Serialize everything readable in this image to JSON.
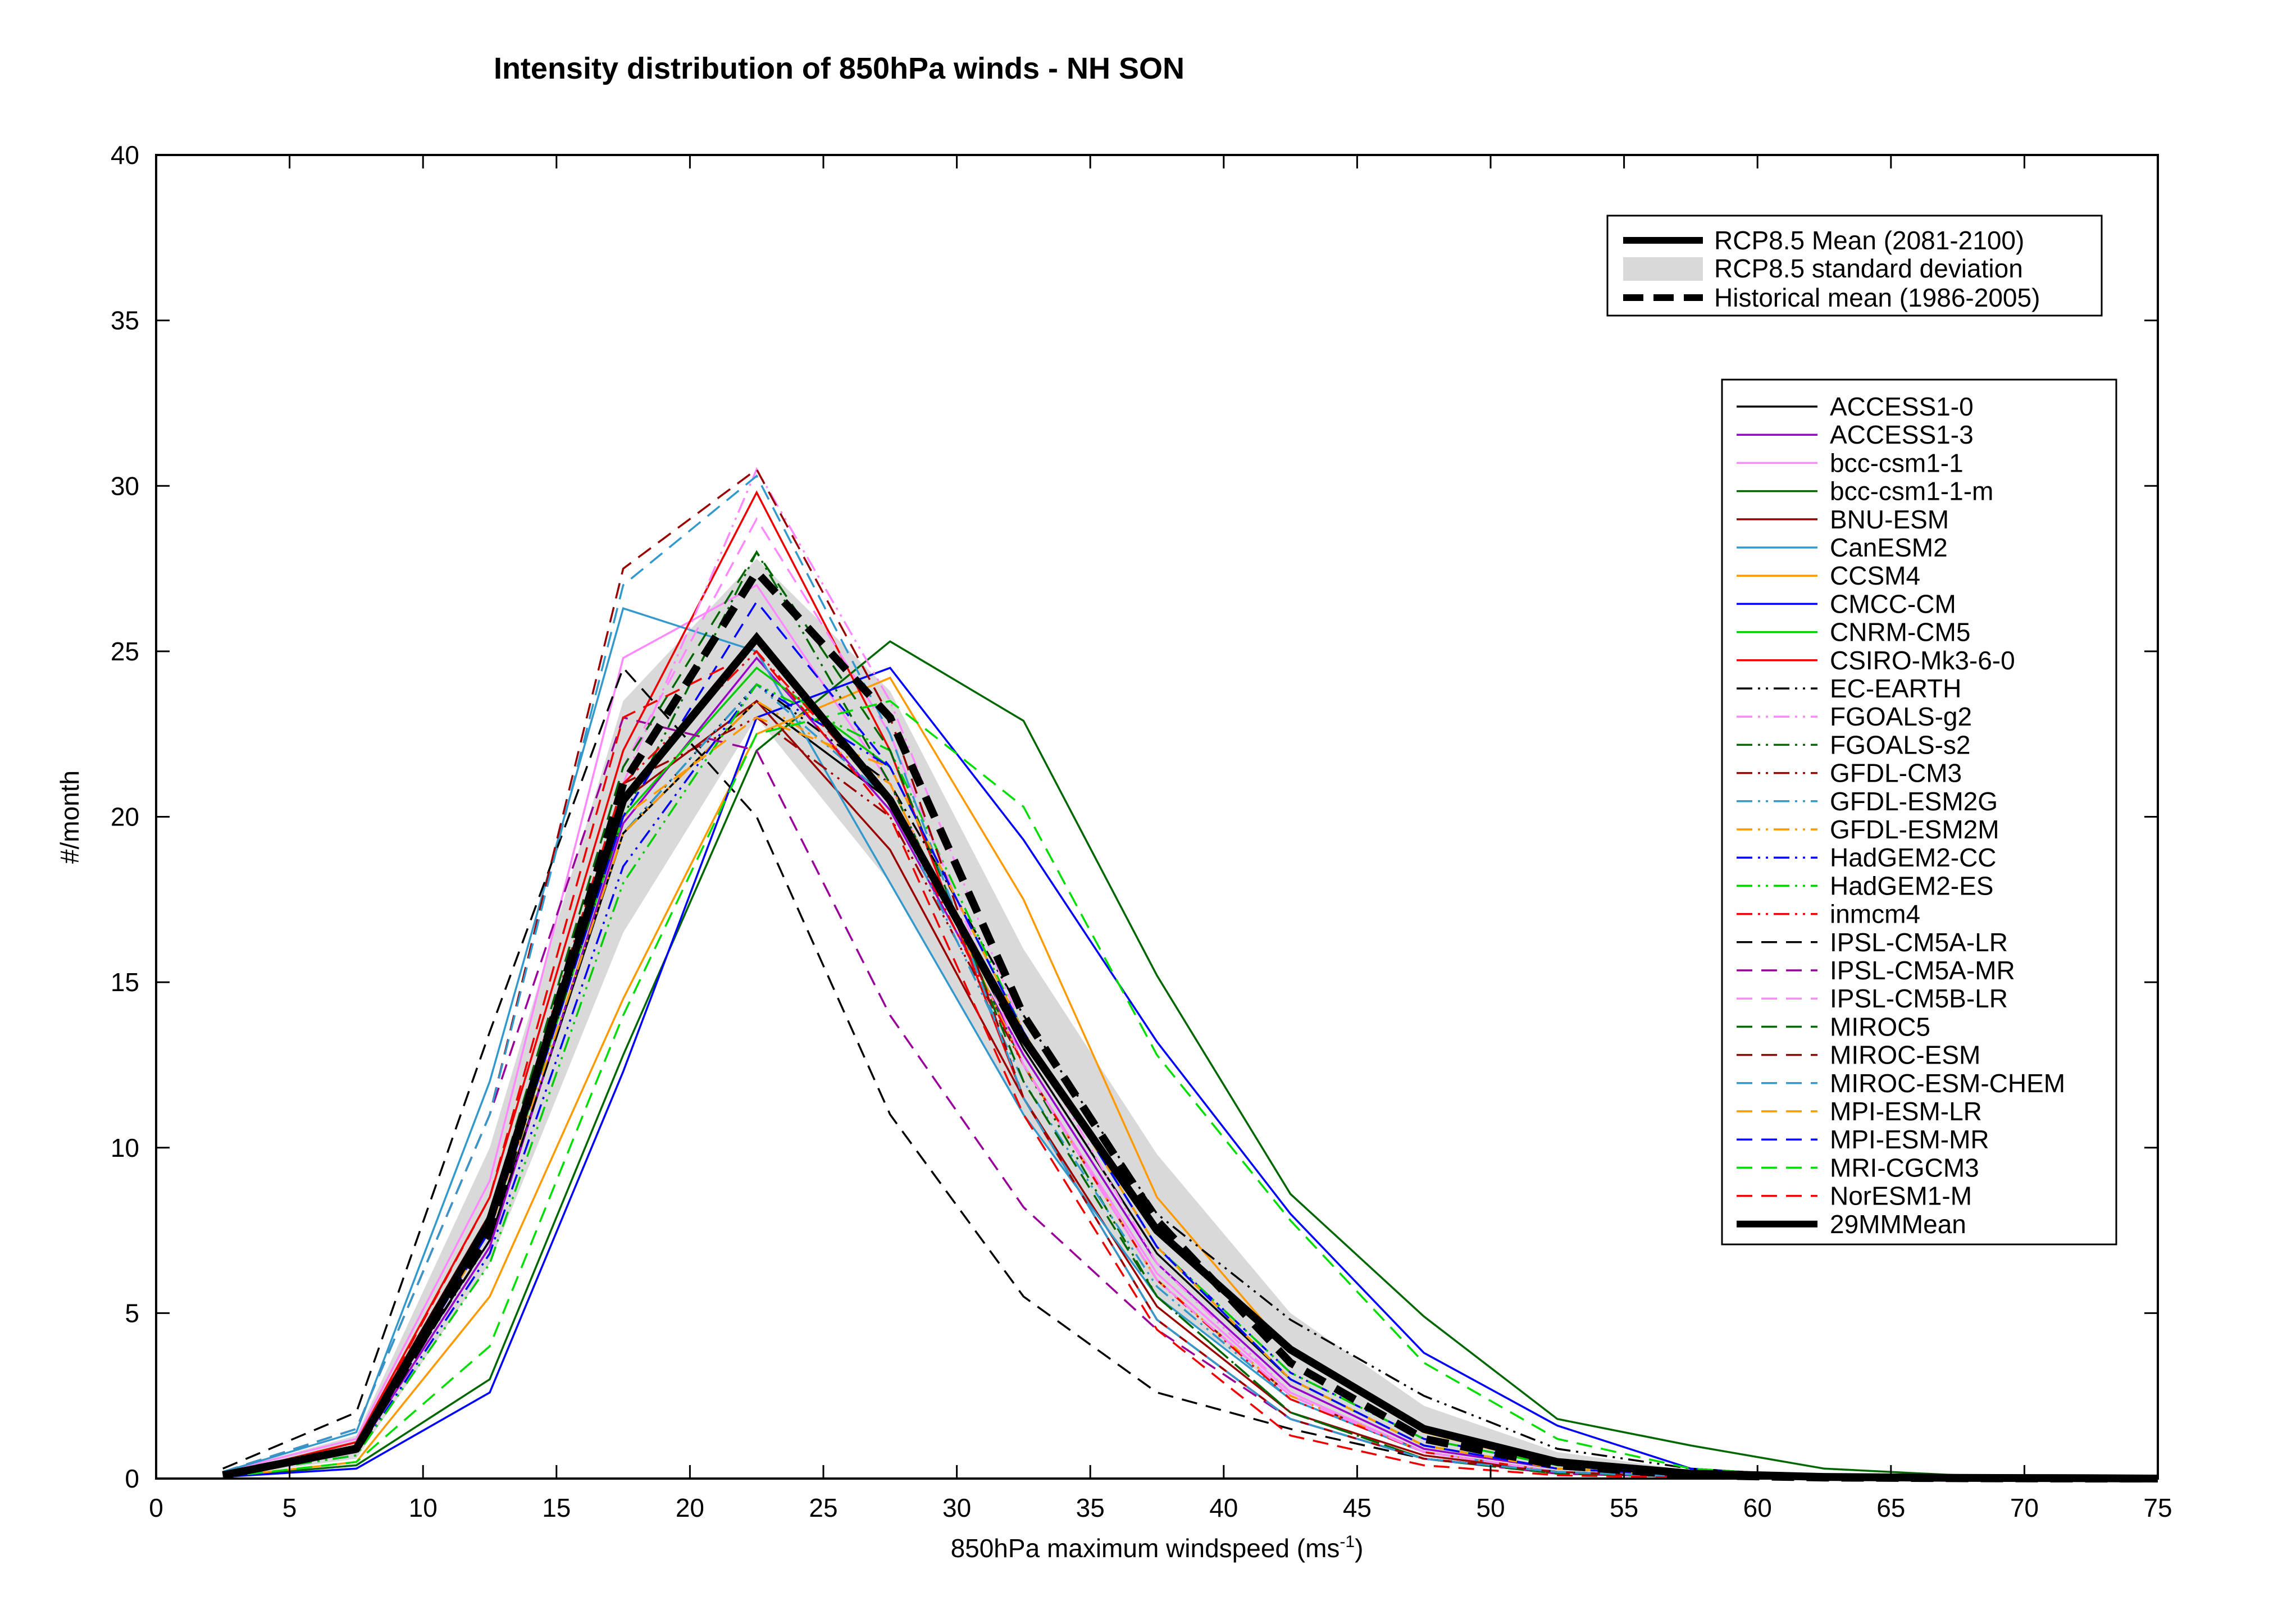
{
  "chart_data": {
    "type": "line",
    "title": "Intensity distribution of 850hPa winds - NH SON",
    "xlabel": "850hPa maximum windspeed (ms",
    "xlabel_sup": "-1",
    "xlabel_end": ")",
    "ylabel": "#/month",
    "xlim": [
      0,
      75
    ],
    "ylim": [
      0,
      40
    ],
    "xticks": [
      0,
      5,
      10,
      15,
      20,
      25,
      30,
      35,
      40,
      45,
      50,
      55,
      60,
      65,
      70,
      75
    ],
    "yticks": [
      0,
      5,
      10,
      15,
      20,
      25,
      30,
      35,
      40
    ],
    "grid": false,
    "x": [
      2.5,
      7.5,
      12.5,
      17.5,
      22.5,
      27.5,
      32.5,
      37.5,
      42.5,
      47.5,
      52.5,
      57.5,
      62.5,
      67.5,
      72.5,
      75
    ],
    "summary": {
      "rcp85_mean": {
        "name": "RCP8.5 Mean (2081-2100)",
        "values": [
          0.1,
          0.9,
          7.8,
          20.5,
          25.4,
          20.5,
          13.3,
          7.5,
          3.9,
          1.5,
          0.5,
          0.15,
          0.05,
          0.02,
          0.01,
          0.0
        ]
      },
      "rcp85_std": {
        "name": "RCP8.5 standard deviation",
        "lower": [
          0.05,
          0.6,
          6.5,
          16.5,
          23.0,
          18.0,
          11.0,
          5.5,
          2.5,
          0.8,
          0.2,
          0.05,
          0.01,
          0.0,
          0.0,
          0.0
        ],
        "upper": [
          0.2,
          1.3,
          10.0,
          23.5,
          27.8,
          23.8,
          16.0,
          9.8,
          5.0,
          2.2,
          0.8,
          0.25,
          0.08,
          0.03,
          0.01,
          0.0
        ]
      },
      "historical_mean": {
        "name": "Historical mean (1986-2005)",
        "values": [
          0.1,
          0.9,
          7.5,
          21.0,
          27.4,
          23.0,
          14.0,
          7.8,
          3.5,
          1.2,
          0.4,
          0.1,
          0.03,
          0.01,
          0.0,
          0.0
        ]
      }
    },
    "series": [
      {
        "name": "ACCESS1-0",
        "color": "#000000",
        "dash": "solid",
        "values": [
          0.1,
          1.0,
          7.2,
          19.5,
          23.5,
          20.5,
          13.0,
          6.8,
          3.0,
          1.0,
          0.3,
          0.1,
          0.02,
          0.0,
          0.0,
          0.0
        ]
      },
      {
        "name": "ACCESS1-3",
        "color": "#9900cc",
        "dash": "solid",
        "values": [
          0.1,
          0.8,
          7.0,
          19.8,
          24.8,
          20.2,
          12.8,
          6.5,
          2.8,
          0.9,
          0.3,
          0.1,
          0.02,
          0.0,
          0.0,
          0.0
        ]
      },
      {
        "name": "bcc-csm1-1",
        "color": "#ff88ff",
        "dash": "solid",
        "values": [
          0.2,
          1.2,
          9.0,
          24.8,
          27.0,
          21.0,
          12.5,
          6.2,
          2.6,
          0.8,
          0.2,
          0.05,
          0.01,
          0.0,
          0.0,
          0.0
        ]
      },
      {
        "name": "bcc-csm1-1-m",
        "color": "#006600",
        "dash": "solid",
        "values": [
          0.05,
          0.4,
          3.0,
          12.8,
          22.0,
          25.3,
          22.9,
          15.2,
          8.6,
          4.9,
          1.8,
          1.0,
          0.3,
          0.1,
          0.02,
          0.0
        ]
      },
      {
        "name": "BNU-ESM",
        "color": "#990000",
        "dash": "solid",
        "values": [
          0.1,
          1.1,
          8.0,
          20.5,
          23.5,
          19.0,
          11.5,
          5.2,
          2.0,
          0.7,
          0.2,
          0.05,
          0.01,
          0.0,
          0.0,
          0.0
        ]
      },
      {
        "name": "CanESM2",
        "color": "#3399cc",
        "dash": "solid",
        "values": [
          0.2,
          1.4,
          12.0,
          26.3,
          25.0,
          18.0,
          11.0,
          5.5,
          2.4,
          0.8,
          0.2,
          0.05,
          0.01,
          0.0,
          0.0,
          0.0
        ]
      },
      {
        "name": "CCSM4",
        "color": "#ff9900",
        "dash": "solid",
        "values": [
          0.05,
          0.5,
          5.5,
          14.5,
          22.5,
          24.2,
          17.5,
          8.5,
          3.8,
          1.4,
          0.4,
          0.1,
          0.02,
          0.0,
          0.0,
          0.0
        ]
      },
      {
        "name": "CMCC-CM",
        "color": "#0000ff",
        "dash": "solid",
        "values": [
          0.05,
          0.3,
          2.6,
          12.3,
          23.0,
          24.5,
          19.3,
          13.2,
          8.0,
          3.8,
          1.6,
          0.3,
          0.05,
          0.01,
          0.0,
          0.0
        ]
      },
      {
        "name": "CNRM-CM5",
        "color": "#00cc00",
        "dash": "solid",
        "values": [
          0.1,
          0.9,
          7.5,
          20.0,
          24.5,
          21.5,
          13.5,
          7.0,
          3.0,
          1.0,
          0.3,
          0.1,
          0.02,
          0.0,
          0.0,
          0.0
        ]
      },
      {
        "name": "CSIRO-Mk3-6-0",
        "color": "#ee0000",
        "dash": "solid",
        "values": [
          0.1,
          1.1,
          8.5,
          22.0,
          29.8,
          22.0,
          11.5,
          4.8,
          1.8,
          0.6,
          0.2,
          0.05,
          0.01,
          0.0,
          0.0,
          0.0
        ]
      },
      {
        "name": "EC-EARTH",
        "color": "#000000",
        "dash": "dashdotdot",
        "values": [
          0.1,
          0.9,
          7.2,
          19.5,
          24.0,
          21.0,
          14.0,
          8.0,
          4.8,
          2.5,
          0.9,
          0.3,
          0.05,
          0.01,
          0.0,
          0.0
        ]
      },
      {
        "name": "FGOALS-g2",
        "color": "#ff88ff",
        "dash": "dashdotdot",
        "values": [
          0.1,
          1.0,
          8.0,
          21.0,
          30.5,
          23.5,
          13.5,
          6.5,
          2.6,
          0.8,
          0.2,
          0.05,
          0.01,
          0.0,
          0.0,
          0.0
        ]
      },
      {
        "name": "FGOALS-s2",
        "color": "#006600",
        "dash": "dashdotdot",
        "values": [
          0.1,
          0.9,
          7.5,
          20.0,
          28.0,
          21.0,
          12.5,
          5.5,
          2.0,
          0.6,
          0.15,
          0.05,
          0.01,
          0.0,
          0.0,
          0.0
        ]
      },
      {
        "name": "GFDL-CM3",
        "color": "#990000",
        "dash": "dashdotdot",
        "values": [
          0.1,
          1.0,
          8.0,
          21.0,
          23.0,
          20.0,
          12.5,
          6.0,
          2.5,
          0.8,
          0.2,
          0.05,
          0.01,
          0.0,
          0.0,
          0.0
        ]
      },
      {
        "name": "GFDL-ESM2G",
        "color": "#3399cc",
        "dash": "dashdotdot",
        "values": [
          0.1,
          0.9,
          7.5,
          19.5,
          24.0,
          20.5,
          12.0,
          5.8,
          2.4,
          0.8,
          0.2,
          0.05,
          0.01,
          0.0,
          0.0,
          0.0
        ]
      },
      {
        "name": "GFDL-ESM2M",
        "color": "#ff9900",
        "dash": "dashdotdot",
        "values": [
          0.1,
          0.9,
          7.5,
          19.5,
          23.5,
          21.0,
          12.5,
          6.0,
          2.5,
          0.8,
          0.2,
          0.05,
          0.01,
          0.0,
          0.0,
          0.0
        ]
      },
      {
        "name": "HadGEM2-CC",
        "color": "#0000ff",
        "dash": "dashdotdot",
        "values": [
          0.1,
          0.7,
          6.8,
          18.5,
          24.0,
          21.5,
          13.5,
          7.0,
          3.2,
          1.2,
          0.4,
          0.1,
          0.02,
          0.0,
          0.0,
          0.0
        ]
      },
      {
        "name": "HadGEM2-ES",
        "color": "#00cc00",
        "dash": "dashdotdot",
        "values": [
          0.1,
          0.7,
          6.5,
          18.0,
          24.0,
          22.0,
          13.5,
          7.0,
          3.2,
          1.2,
          0.4,
          0.1,
          0.02,
          0.0,
          0.0,
          0.0
        ]
      },
      {
        "name": "inmcm4",
        "color": "#ee0000",
        "dash": "dashdotdot",
        "values": [
          0.1,
          1.0,
          8.0,
          21.0,
          25.0,
          20.5,
          12.5,
          6.0,
          2.4,
          0.8,
          0.2,
          0.05,
          0.01,
          0.0,
          0.0,
          0.0
        ]
      },
      {
        "name": "IPSL-CM5A-LR",
        "color": "#000000",
        "dash": "dashed",
        "values": [
          0.3,
          2.0,
          13.5,
          24.5,
          20.0,
          11.0,
          5.5,
          2.6,
          1.5,
          0.6,
          0.2,
          0.05,
          0.01,
          0.0,
          0.0,
          0.0
        ]
      },
      {
        "name": "IPSL-CM5A-MR",
        "color": "#990099",
        "dash": "dashed",
        "values": [
          0.2,
          1.5,
          11.0,
          23.0,
          22.0,
          14.0,
          8.2,
          4.5,
          1.8,
          0.6,
          0.15,
          0.05,
          0.01,
          0.0,
          0.0,
          0.0
        ]
      },
      {
        "name": "IPSL-CM5B-LR",
        "color": "#ff88ff",
        "dash": "dashed",
        "values": [
          0.1,
          1.0,
          8.0,
          21.5,
          29.0,
          22.5,
          12.5,
          6.0,
          2.5,
          0.8,
          0.2,
          0.05,
          0.01,
          0.0,
          0.0,
          0.0
        ]
      },
      {
        "name": "MIROC5",
        "color": "#006600",
        "dash": "dashed",
        "values": [
          0.1,
          1.0,
          8.0,
          21.5,
          28.0,
          22.0,
          12.0,
          5.5,
          2.0,
          0.6,
          0.15,
          0.05,
          0.01,
          0.0,
          0.0,
          0.0
        ]
      },
      {
        "name": "MIROC-ESM",
        "color": "#990000",
        "dash": "dashed",
        "values": [
          0.2,
          1.5,
          11.0,
          27.5,
          30.5,
          23.0,
          11.5,
          4.8,
          1.8,
          0.6,
          0.2,
          0.05,
          0.01,
          0.0,
          0.0,
          0.0
        ]
      },
      {
        "name": "MIROC-ESM-CHEM",
        "color": "#3399cc",
        "dash": "dashed",
        "values": [
          0.2,
          1.5,
          11.0,
          27.0,
          30.3,
          22.5,
          11.5,
          4.8,
          1.8,
          0.6,
          0.2,
          0.05,
          0.01,
          0.0,
          0.0,
          0.0
        ]
      },
      {
        "name": "MPI-ESM-LR",
        "color": "#ff9900",
        "dash": "dashed",
        "values": [
          0.1,
          0.9,
          7.5,
          20.0,
          23.0,
          21.5,
          13.5,
          7.0,
          3.0,
          1.0,
          0.3,
          0.1,
          0.02,
          0.0,
          0.0,
          0.0
        ]
      },
      {
        "name": "MPI-ESM-MR",
        "color": "#0000ff",
        "dash": "dashed",
        "values": [
          0.1,
          0.9,
          7.5,
          20.0,
          26.5,
          21.5,
          13.5,
          7.0,
          3.0,
          1.0,
          0.3,
          0.1,
          0.02,
          0.0,
          0.0,
          0.0
        ]
      },
      {
        "name": "MRI-CGCM3",
        "color": "#00dd00",
        "dash": "dashed",
        "values": [
          0.05,
          0.5,
          4.0,
          14.0,
          22.5,
          23.5,
          20.3,
          12.8,
          7.8,
          3.5,
          1.2,
          0.3,
          0.05,
          0.01,
          0.0,
          0.0
        ]
      },
      {
        "name": "NorESM1-M",
        "color": "#ee0000",
        "dash": "dashed",
        "values": [
          0.1,
          1.0,
          8.5,
          23.0,
          25.0,
          20.0,
          11.0,
          4.5,
          1.3,
          0.4,
          0.1,
          0.02,
          0.0,
          0.0,
          0.0,
          0.0
        ]
      },
      {
        "name": "29MMMean",
        "color": "#000000",
        "dash": "solid",
        "thick": true,
        "values": [
          0.1,
          0.9,
          7.8,
          20.5,
          25.4,
          20.5,
          13.3,
          7.5,
          3.9,
          1.5,
          0.5,
          0.15,
          0.05,
          0.02,
          0.01,
          0.0
        ]
      }
    ]
  }
}
